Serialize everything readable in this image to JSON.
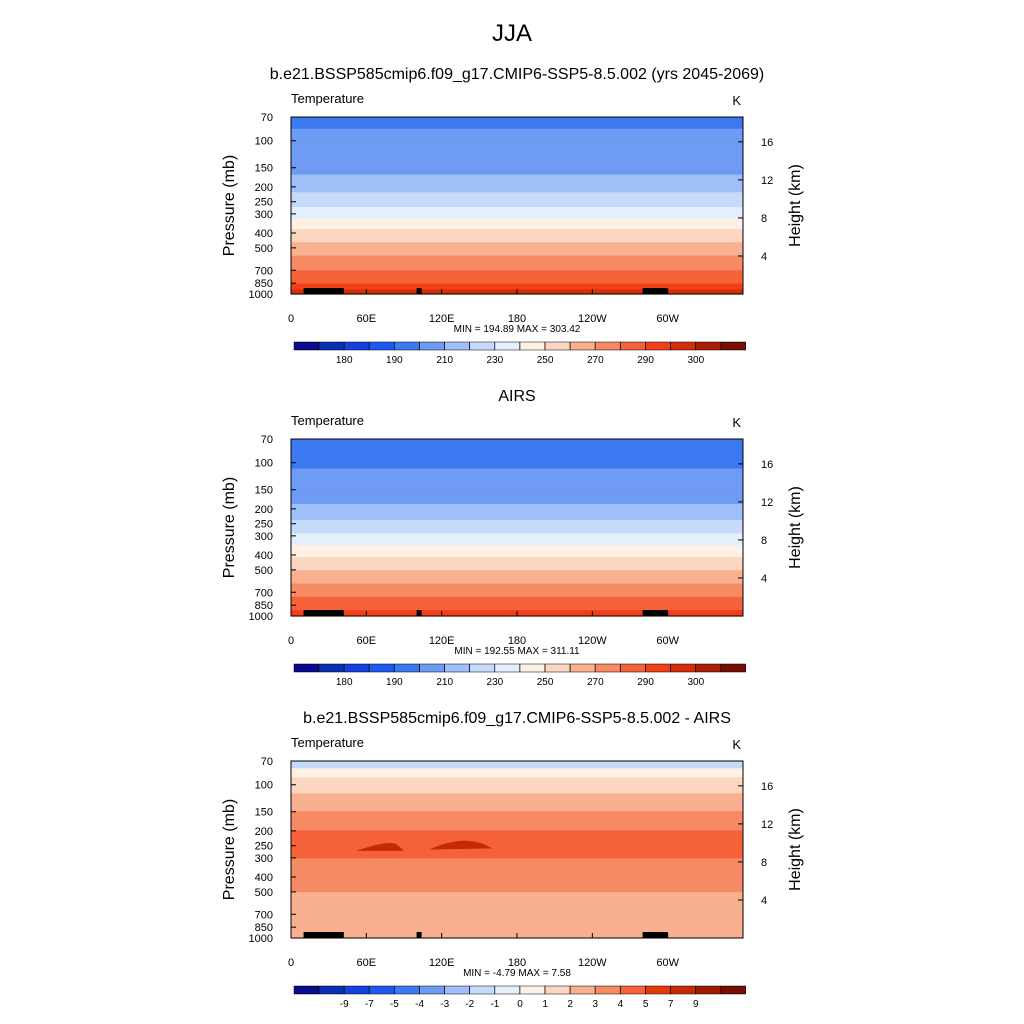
{
  "page": {
    "title": "JJA"
  },
  "palette": {
    "abs": [
      "#0a0a8c",
      "#0b2fb4",
      "#1640dc",
      "#1e5af0",
      "#3c78f0",
      "#6e9bf4",
      "#9ebff8",
      "#c6dafb",
      "#e4eefd",
      "#fdf0e4",
      "#fbd6c0",
      "#f8b090",
      "#f68a62",
      "#f5623a",
      "#f23f18",
      "#d42e08",
      "#aa1e04",
      "#780c00"
    ],
    "diff": [
      "#0a0a8c",
      "#0b2fb4",
      "#1640dc",
      "#1e5af0",
      "#3c78f0",
      "#6e9bf4",
      "#9ebff8",
      "#c6dafb",
      "#e4eefd",
      "#fdf0e4",
      "#fbd6c0",
      "#f8b090",
      "#f68a62",
      "#f5623a",
      "#e33a0a",
      "#c42a04",
      "#a01a02",
      "#780c00"
    ]
  },
  "chart_data": [
    {
      "type": "heatmap",
      "title": "b.e21.BSSP585cmip6.f09_g17.CMIP6-SSP5-8.5.002 (yrs 2045-2069)",
      "left_label": "Temperature",
      "right_label": "K",
      "ylabel": "Pressure (mb)",
      "y2label": "Height (km)",
      "x_ticks": [
        "0",
        "60E",
        "120E",
        "180",
        "120W",
        "60W"
      ],
      "x_tick_lon": [
        0,
        60,
        120,
        180,
        240,
        300
      ],
      "xlim": [
        0,
        360
      ],
      "y_ticks": [
        "70",
        "100",
        "150",
        "200",
        "250",
        "300",
        "400",
        "500",
        "700",
        "850",
        "1000"
      ],
      "y_tick_values": [
        70,
        100,
        150,
        200,
        250,
        300,
        400,
        500,
        700,
        850,
        1000
      ],
      "ylim": [
        70,
        1000
      ],
      "y_scale": "log",
      "y2_ticks": [
        "16",
        "12",
        "8",
        "4"
      ],
      "y2_tick_km": [
        16,
        12,
        8,
        4
      ],
      "stats": "MIN = 194.89  MAX = 303.42",
      "min": 194.89,
      "max": 303.42,
      "field": "abs",
      "colorbar_labels": [
        "180",
        "190",
        "210",
        "230",
        "250",
        "270",
        "290",
        "300"
      ],
      "colorbar_label_index": [
        1,
        3,
        5,
        7,
        9,
        11,
        13,
        15
      ],
      "profile": [
        {
          "p": 70,
          "v": 199
        },
        {
          "p": 100,
          "v": 201
        },
        {
          "p": 150,
          "v": 207
        },
        {
          "p": 200,
          "v": 216
        },
        {
          "p": 250,
          "v": 226
        },
        {
          "p": 300,
          "v": 236
        },
        {
          "p": 400,
          "v": 253
        },
        {
          "p": 500,
          "v": 265
        },
        {
          "p": 700,
          "v": 280
        },
        {
          "p": 850,
          "v": 290
        },
        {
          "p": 1000,
          "v": 298
        }
      ]
    },
    {
      "type": "heatmap",
      "title": "AIRS",
      "left_label": "Temperature",
      "right_label": "K",
      "ylabel": "Pressure (mb)",
      "y2label": "Height (km)",
      "x_ticks": [
        "0",
        "60E",
        "120E",
        "180",
        "120W",
        "60W"
      ],
      "x_tick_lon": [
        0,
        60,
        120,
        180,
        240,
        300
      ],
      "xlim": [
        0,
        360
      ],
      "y_ticks": [
        "70",
        "100",
        "150",
        "200",
        "250",
        "300",
        "400",
        "500",
        "700",
        "850",
        "1000"
      ],
      "y_tick_values": [
        70,
        100,
        150,
        200,
        250,
        300,
        400,
        500,
        700,
        850,
        1000
      ],
      "ylim": [
        70,
        1000
      ],
      "y_scale": "log",
      "y2_ticks": [
        "16",
        "12",
        "8",
        "4"
      ],
      "y2_tick_km": [
        16,
        12,
        8,
        4
      ],
      "stats": "MIN = 192.55  MAX = 311.11",
      "min": 192.55,
      "max": 311.11,
      "field": "abs",
      "colorbar_labels": [
        "180",
        "190",
        "210",
        "230",
        "250",
        "270",
        "290",
        "300"
      ],
      "colorbar_label_index": [
        1,
        3,
        5,
        7,
        9,
        11,
        13,
        15
      ],
      "profile": [
        {
          "p": 70,
          "v": 197
        },
        {
          "p": 100,
          "v": 199
        },
        {
          "p": 150,
          "v": 204
        },
        {
          "p": 200,
          "v": 212
        },
        {
          "p": 250,
          "v": 222
        },
        {
          "p": 300,
          "v": 232
        },
        {
          "p": 400,
          "v": 248
        },
        {
          "p": 500,
          "v": 260
        },
        {
          "p": 700,
          "v": 276
        },
        {
          "p": 850,
          "v": 286
        },
        {
          "p": 1000,
          "v": 294
        }
      ]
    },
    {
      "type": "heatmap",
      "title": "b.e21.BSSP585cmip6.f09_g17.CMIP6-SSP5-8.5.002 - AIRS",
      "left_label": "Temperature",
      "right_label": "K",
      "ylabel": "Pressure (mb)",
      "y2label": "Height (km)",
      "x_ticks": [
        "0",
        "60E",
        "120E",
        "180",
        "120W",
        "60W"
      ],
      "x_tick_lon": [
        0,
        60,
        120,
        180,
        240,
        300
      ],
      "xlim": [
        0,
        360
      ],
      "y_ticks": [
        "70",
        "100",
        "150",
        "200",
        "250",
        "300",
        "400",
        "500",
        "700",
        "850",
        "1000"
      ],
      "y_tick_values": [
        70,
        100,
        150,
        200,
        250,
        300,
        400,
        500,
        700,
        850,
        1000
      ],
      "ylim": [
        70,
        1000
      ],
      "y_scale": "log",
      "y2_ticks": [
        "16",
        "12",
        "8",
        "4"
      ],
      "y2_tick_km": [
        16,
        12,
        8,
        4
      ],
      "stats": "MIN =  -4.79  MAX =   7.58",
      "min": -4.79,
      "max": 7.58,
      "field": "diff",
      "colorbar_labels": [
        "-9",
        "-7",
        "-5",
        "-4",
        "-3",
        "-2",
        "-1",
        "0",
        "1",
        "2",
        "3",
        "4",
        "5",
        "7",
        "9"
      ],
      "colorbar_label_index": [
        1,
        2,
        3,
        4,
        5,
        6,
        7,
        8,
        9,
        10,
        11,
        12,
        13,
        14,
        15
      ],
      "profile": [
        {
          "p": 70,
          "v": 0.5
        },
        {
          "p": 80,
          "v": 1.5
        },
        {
          "p": 100,
          "v": 2.5
        },
        {
          "p": 150,
          "v": 4.0
        },
        {
          "p": 200,
          "v": 5.0
        },
        {
          "p": 250,
          "v": 5.2
        },
        {
          "p": 300,
          "v": 5.0
        },
        {
          "p": 400,
          "v": 4.6
        },
        {
          "p": 500,
          "v": 4.0
        },
        {
          "p": 700,
          "v": 3.2
        },
        {
          "p": 850,
          "v": 2.6
        },
        {
          "p": 1000,
          "v": 2.0
        }
      ]
    }
  ]
}
